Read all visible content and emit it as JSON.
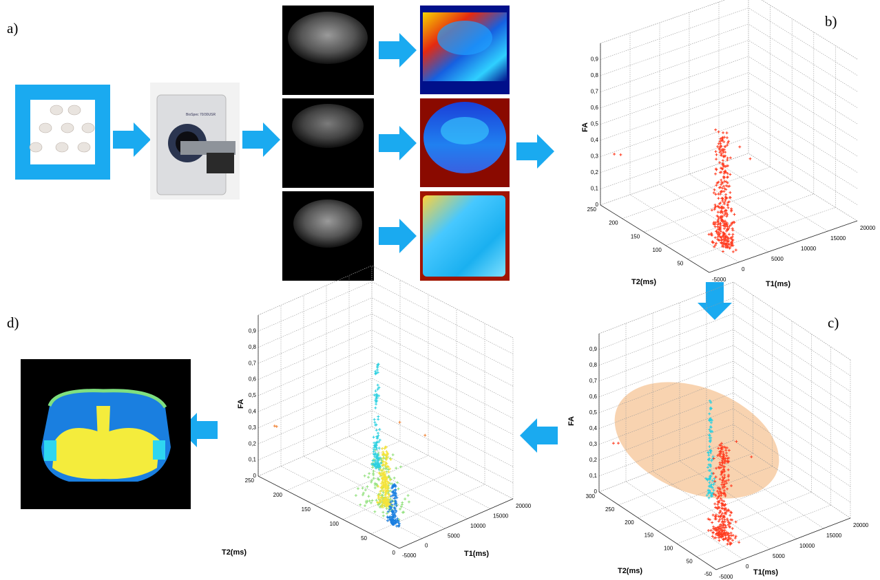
{
  "panel_labels": [
    "a)",
    "b)",
    "c)",
    "d)"
  ],
  "scanner_text": "BioSpec 70/30USR",
  "plots": [
    {
      "axis_labels": {
        "z": "FA",
        "y": "T2(ms)",
        "x": "T1(ms)"
      },
      "z_ticks": [
        "0",
        "0,1",
        "0,2",
        "0,3",
        "0,4",
        "0,5",
        "0,6",
        "0,7",
        "0,8",
        "0,9"
      ],
      "y_ticks": [
        250,
        200,
        150,
        100,
        50
      ],
      "x_ticks": [
        -5000,
        0,
        5000,
        10000,
        15000,
        20000
      ]
    },
    {
      "axis_labels": {
        "z": "FA",
        "y": "T2(ms)",
        "x": "T1(ms)"
      },
      "z_ticks": [
        "0",
        "0,1",
        "0,2",
        "0,3",
        "0,4",
        "0,5",
        "0,6",
        "0,7",
        "0,8",
        "0,9"
      ],
      "y_ticks": [
        300,
        250,
        200,
        150,
        100,
        50,
        -50
      ],
      "x_ticks": [
        -5000,
        0,
        5000,
        10000,
        15000,
        20000
      ]
    },
    {
      "axis_labels": {
        "z": "FA",
        "y": "T2(ms)",
        "x": "T1(ms)"
      },
      "z_ticks": [
        "0",
        "0,1",
        "0,2",
        "0,3",
        "0,4",
        "0,5",
        "0,6",
        "0,7",
        "0,8",
        "0,9"
      ],
      "y_ticks": [
        250,
        200,
        150,
        100,
        50,
        0
      ],
      "x_ticks": [
        -5000,
        0,
        5000,
        10000,
        15000,
        20000
      ]
    }
  ]
}
